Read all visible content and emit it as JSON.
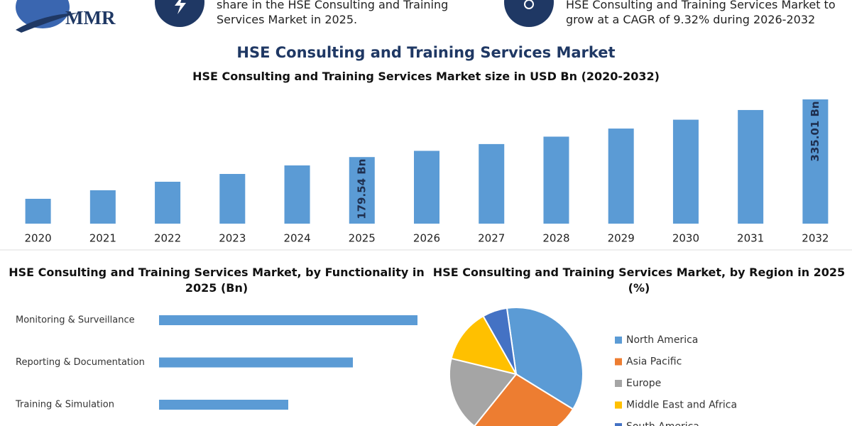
{
  "header": {
    "logo": "MMR",
    "note_left": "share in the HSE Consulting and Training Services Market in 2025.",
    "note_right": "HSE Consulting and Training Services Market to grow at a CAGR of 9.32% during 2026-2032"
  },
  "chart_data": [
    {
      "type": "bar",
      "title": "HSE Consulting and Training Services Market",
      "subtitle": "HSE Consulting and Training Services Market size in USD Bn (2020-2032)",
      "categories": [
        "2020",
        "2021",
        "2022",
        "2023",
        "2024",
        "2025",
        "2026",
        "2027",
        "2028",
        "2029",
        "2030",
        "2031",
        "2032"
      ],
      "values": [
        67,
        90,
        113,
        134,
        157,
        179.54,
        196.3,
        214.6,
        234.6,
        256.4,
        280.3,
        306.4,
        335.01
      ],
      "value_labels": [
        null,
        null,
        null,
        null,
        null,
        "179.54 Bn",
        null,
        null,
        null,
        null,
        null,
        null,
        "335.01 Bn"
      ],
      "color": "#5b9bd5"
    },
    {
      "type": "hbar",
      "title": "HSE Consulting and Training Services Market, by Functionality in 2025 (Bn)",
      "categories": [
        "Monitoring & Surveillance",
        "Reporting & Documentation",
        "Training & Simulation"
      ],
      "values": [
        40,
        30,
        20
      ],
      "color": "#5b9bd5"
    },
    {
      "type": "pie",
      "title": "HSE Consulting and Training Services Market, by Region in 2025 (%)",
      "categories": [
        "North America",
        "Asia Pacific",
        "Europe",
        "Middle East and Africa",
        "South America"
      ],
      "values": [
        36,
        27,
        18,
        13,
        6
      ],
      "colors": [
        "#5b9bd5",
        "#ed7d31",
        "#a5a5a5",
        "#ffc000",
        "#4472c4"
      ]
    }
  ]
}
